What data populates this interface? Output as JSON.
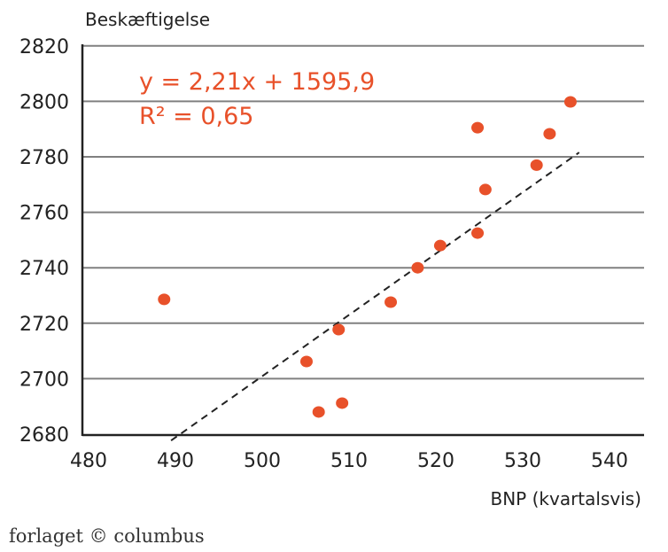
{
  "chart_data": {
    "type": "scatter",
    "xlabel": "BNP (kvartalsvis)",
    "ylabel": "Beskæftigelse",
    "xlim": [
      480,
      544
    ],
    "ylim": [
      2680,
      2820
    ],
    "x_ticks": [
      "480",
      "490",
      "500",
      "510",
      "520",
      "530",
      "540"
    ],
    "y_ticks": [
      "2680",
      "2700",
      "2720",
      "2740",
      "2760",
      "2780",
      "2800",
      "2820"
    ],
    "grid": "horizontal",
    "points": [
      {
        "x": 488.7,
        "y": 2728.6
      },
      {
        "x": 505.1,
        "y": 2706.2
      },
      {
        "x": 506.5,
        "y": 2688
      },
      {
        "x": 508.8,
        "y": 2717.7
      },
      {
        "x": 509.2,
        "y": 2691.2
      },
      {
        "x": 514.8,
        "y": 2727.6
      },
      {
        "x": 517.9,
        "y": 2740
      },
      {
        "x": 520.5,
        "y": 2748
      },
      {
        "x": 524.8,
        "y": 2790.5
      },
      {
        "x": 524.8,
        "y": 2752.5
      },
      {
        "x": 525.7,
        "y": 2768.2
      },
      {
        "x": 531.6,
        "y": 2777
      },
      {
        "x": 533.1,
        "y": 2788.3
      },
      {
        "x": 535.5,
        "y": 2799.8
      }
    ],
    "trendline": {
      "slope": 2.21,
      "intercept": 1595.9,
      "x_range": [
        489.5,
        536.5
      ],
      "style": "dashed"
    },
    "annotations": {
      "equation": "y = 2,21x + 1595,9",
      "r2": "R² = 0,65"
    },
    "colors": {
      "points": "#e8512a",
      "text": "#e8512a",
      "grid": "#808080"
    }
  },
  "footer": {
    "logo": "forlaget © columbus"
  }
}
